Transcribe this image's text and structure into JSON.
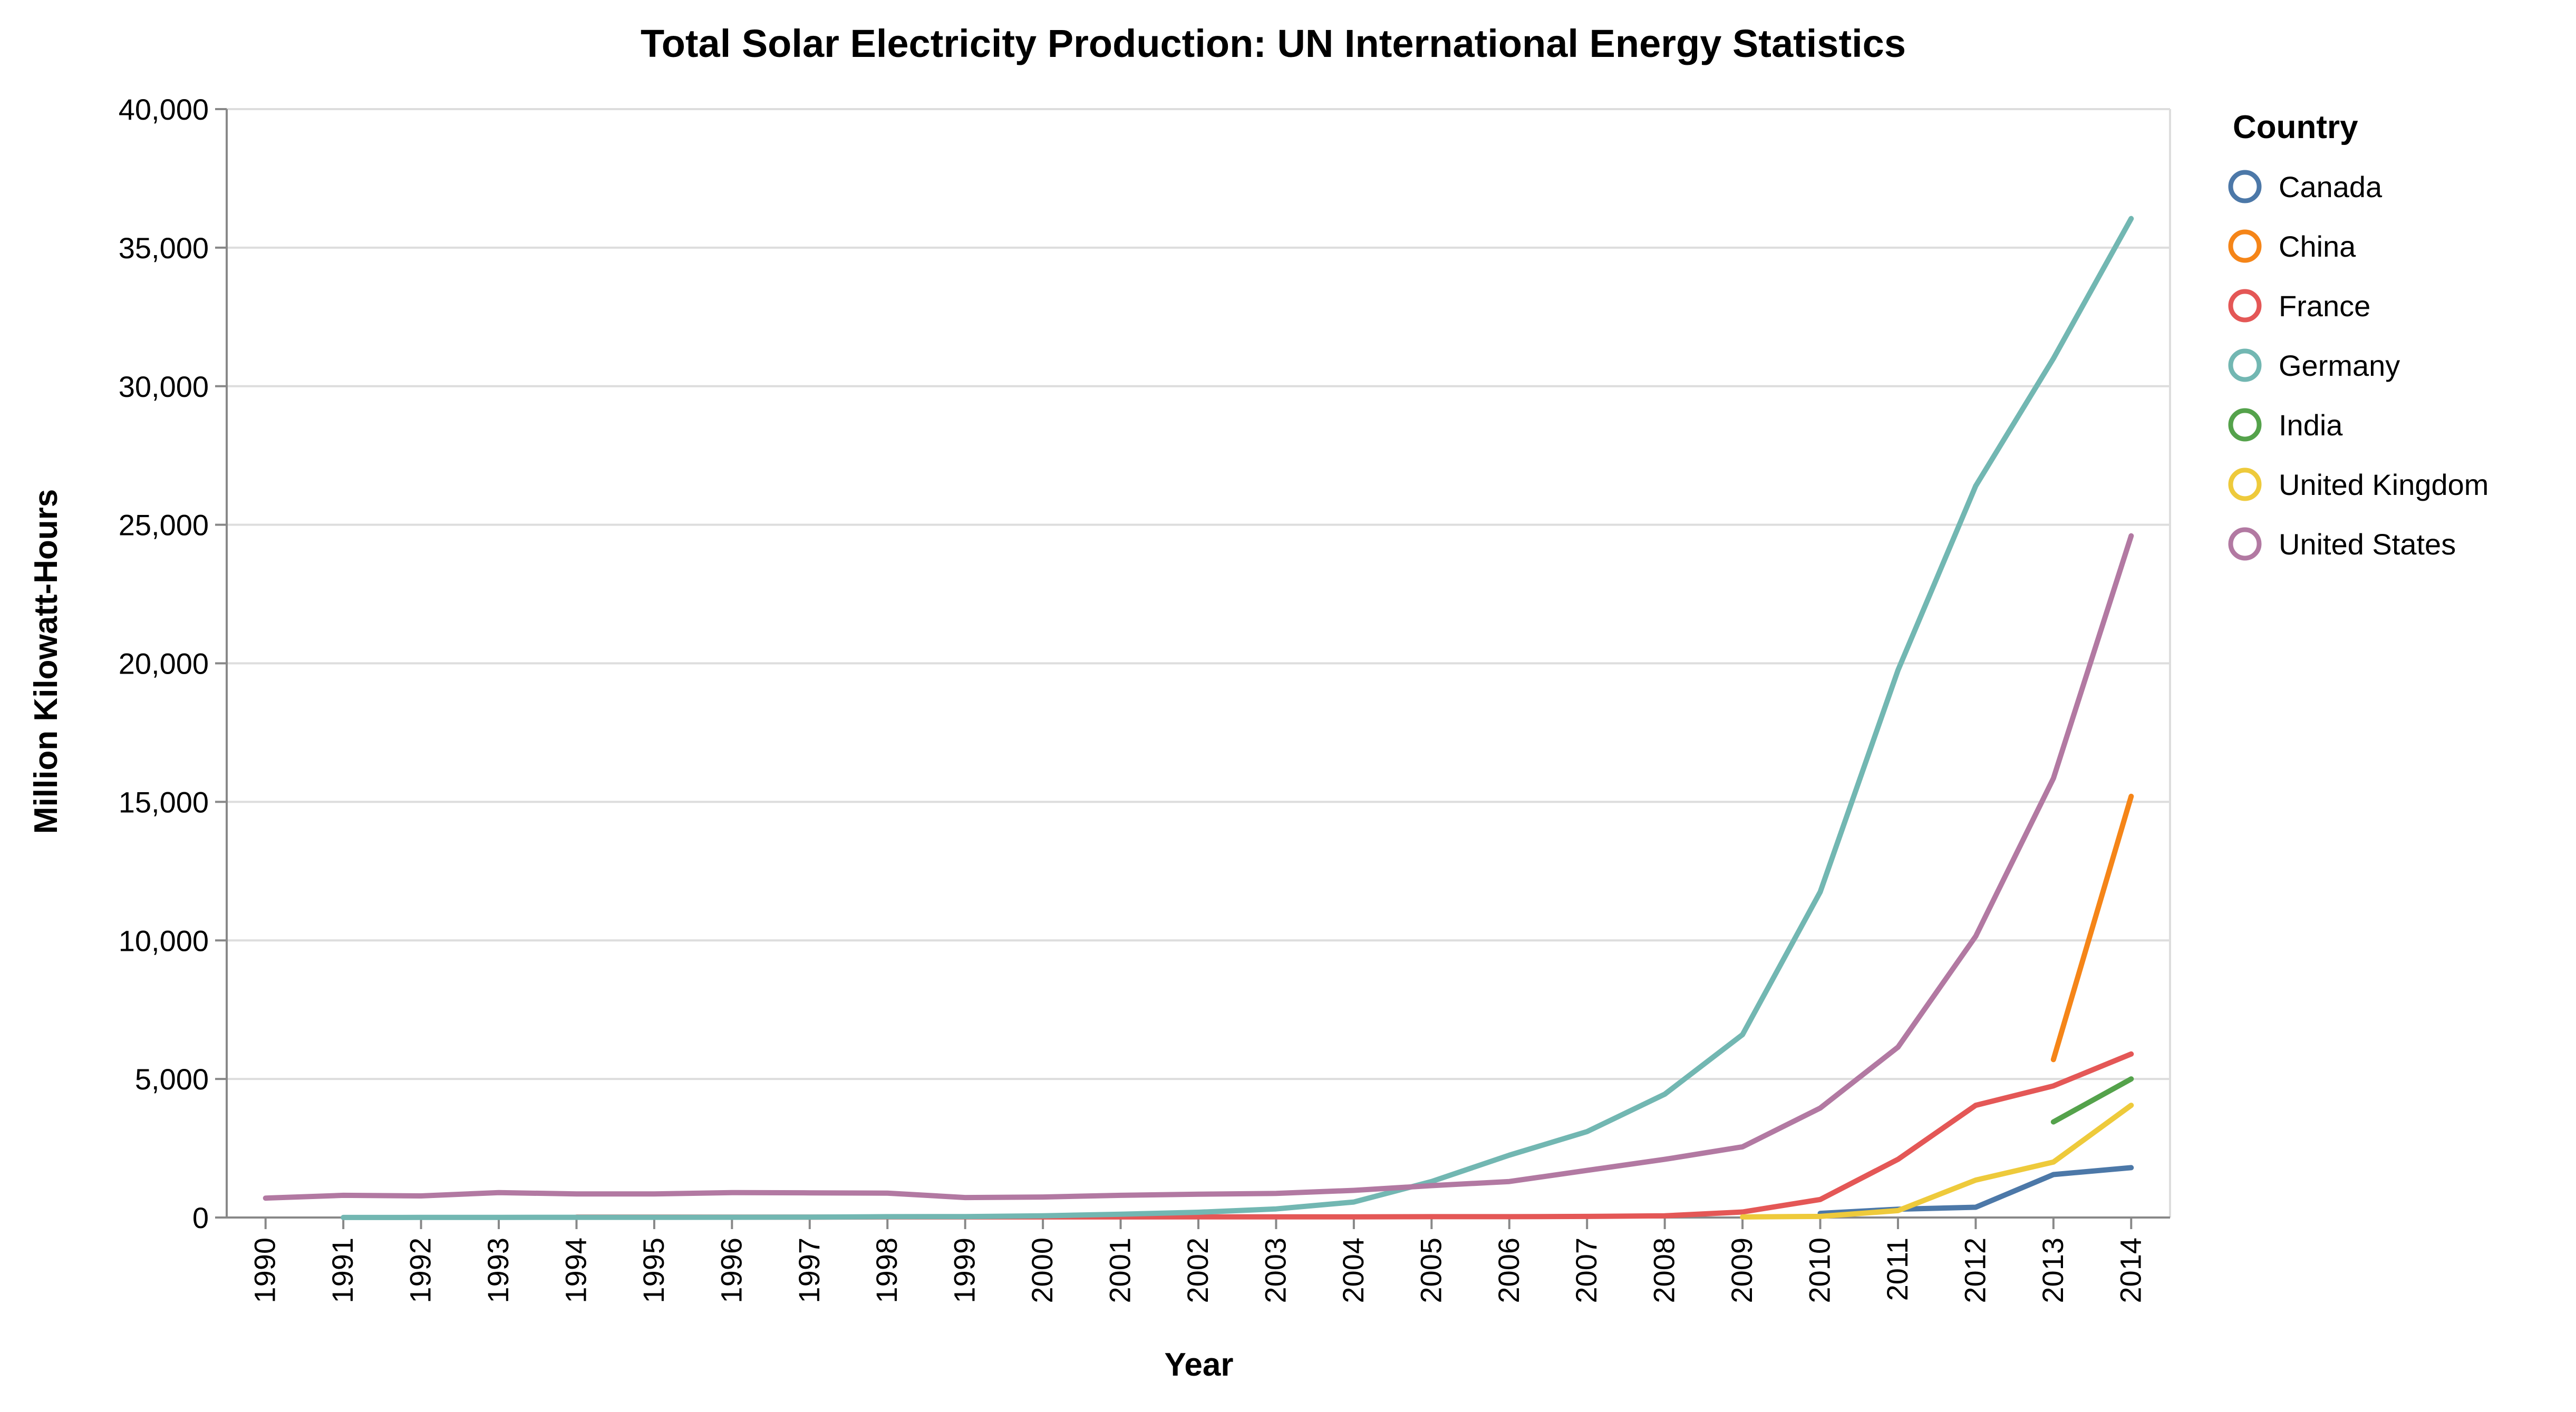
{
  "chart_data": {
    "type": "line",
    "title": "Total Solar Electricity Production: UN International Energy Statistics",
    "xlabel": "Year",
    "ylabel": "Million Kilowatt-Hours",
    "ylim": [
      0,
      40000
    ],
    "y_ticks": [
      "0",
      "5,000",
      "10,000",
      "15,000",
      "20,000",
      "25,000",
      "30,000",
      "35,000",
      "40,000"
    ],
    "y_tick_values": [
      0,
      5000,
      10000,
      15000,
      20000,
      25000,
      30000,
      35000,
      40000
    ],
    "x": [
      "1990",
      "1991",
      "1992",
      "1993",
      "1994",
      "1995",
      "1996",
      "1997",
      "1998",
      "1999",
      "2000",
      "2001",
      "2002",
      "2003",
      "2004",
      "2005",
      "2006",
      "2007",
      "2008",
      "2009",
      "2010",
      "2011",
      "2012",
      "2013",
      "2014"
    ],
    "legend_title": "Country",
    "legend_position": "right",
    "grid": true,
    "series": [
      {
        "name": "Canada",
        "color": "#4c78a8",
        "values": [
          null,
          null,
          null,
          null,
          null,
          null,
          null,
          null,
          null,
          null,
          null,
          null,
          null,
          null,
          null,
          null,
          null,
          null,
          null,
          null,
          150,
          300,
          370,
          1550,
          1800
        ]
      },
      {
        "name": "China",
        "color": "#f58518",
        "values": [
          null,
          null,
          null,
          null,
          null,
          null,
          null,
          null,
          null,
          null,
          null,
          null,
          null,
          null,
          null,
          null,
          null,
          null,
          null,
          null,
          null,
          null,
          null,
          5700,
          15200
        ]
      },
      {
        "name": "France",
        "color": "#e45756",
        "values": [
          null,
          null,
          null,
          null,
          15,
          15,
          15,
          15,
          20,
          20,
          20,
          20,
          25,
          25,
          25,
          30,
          30,
          40,
          60,
          200,
          650,
          2100,
          4050,
          4750,
          5900
        ]
      },
      {
        "name": "Germany",
        "color": "#72b7b2",
        "values": [
          null,
          2,
          3,
          5,
          7,
          7,
          10,
          15,
          30,
          35,
          60,
          120,
          190,
          310,
          560,
          1300,
          2250,
          3100,
          4450,
          6600,
          11750,
          19750,
          26400,
          31000,
          36050
        ]
      },
      {
        "name": "India",
        "color": "#54a24b",
        "values": [
          null,
          null,
          null,
          null,
          null,
          null,
          null,
          null,
          null,
          null,
          null,
          null,
          null,
          null,
          null,
          null,
          null,
          null,
          null,
          null,
          null,
          null,
          null,
          3450,
          5000
        ]
      },
      {
        "name": "United Kingdom",
        "color": "#eeca3b",
        "values": [
          null,
          null,
          null,
          null,
          null,
          null,
          null,
          null,
          null,
          null,
          null,
          null,
          null,
          null,
          null,
          null,
          null,
          null,
          null,
          20,
          40,
          250,
          1350,
          2000,
          4050
        ]
      },
      {
        "name": "United States",
        "color": "#b279a2",
        "values": [
          700,
          800,
          780,
          900,
          850,
          850,
          900,
          890,
          880,
          720,
          740,
          800,
          840,
          870,
          980,
          1150,
          1300,
          1700,
          2100,
          2550,
          3950,
          6150,
          10150,
          15850,
          24600
        ]
      }
    ]
  }
}
